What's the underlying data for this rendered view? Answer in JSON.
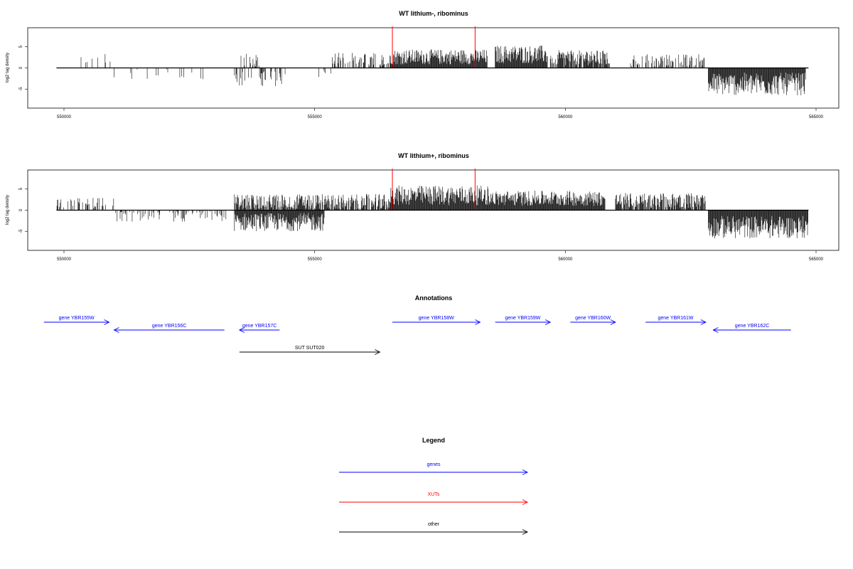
{
  "chart_data": [
    {
      "type": "bar",
      "title": "WT lithium-, ribominus",
      "ylabel": "log2 tag density",
      "xlim": [
        549700,
        565200
      ],
      "ylim": [
        -9.5,
        9.5
      ],
      "xticks": [
        550000,
        555000,
        560000,
        565000
      ],
      "xtick_labels": [
        "550000",
        "555000",
        "560000",
        "565000"
      ],
      "yticks": [
        5,
        0,
        -5
      ],
      "ytick_labels": [
        "5",
        "0",
        "-5"
      ],
      "baseline": {
        "x": [
          549850,
          564850
        ],
        "y": 0
      },
      "markers": [
        {
          "x": 556550,
          "color": "#ff0000"
        },
        {
          "x": 558200,
          "color": "#ff0000"
        }
      ],
      "segments": [
        {
          "start": 549850,
          "end": 551000,
          "mean": 2.0,
          "spread": 0.8,
          "density": 0.1
        },
        {
          "start": 551000,
          "end": 552800,
          "mean": -1.5,
          "spread": 0.8,
          "density": 0.1
        },
        {
          "start": 553450,
          "end": 553900,
          "mean": 1.8,
          "spread": 1.0,
          "density": 0.3
        },
        {
          "start": 553400,
          "end": 554450,
          "mean": -2.5,
          "spread": 1.0,
          "density": 0.3
        },
        {
          "start": 555000,
          "end": 555400,
          "mean": -1.5,
          "spread": 1.0,
          "density": 0.15
        },
        {
          "start": 555350,
          "end": 556500,
          "mean": 1.8,
          "spread": 1.0,
          "density": 0.5
        },
        {
          "start": 556500,
          "end": 558450,
          "mean": 2.6,
          "spread": 1.0,
          "density": 1.0
        },
        {
          "start": 558600,
          "end": 559650,
          "mean": 3.2,
          "spread": 1.2,
          "density": 1.0
        },
        {
          "start": 559700,
          "end": 560900,
          "mean": 2.4,
          "spread": 1.0,
          "density": 0.8
        },
        {
          "start": 561300,
          "end": 562800,
          "mean": 1.8,
          "spread": 0.8,
          "density": 0.4
        },
        {
          "start": 562850,
          "end": 564800,
          "mean": -3.8,
          "spread": 1.5,
          "density": 1.0
        }
      ]
    },
    {
      "type": "bar",
      "title": "WT lithium+, ribominus",
      "ylabel": "log2 tag density",
      "xlim": [
        549700,
        565200
      ],
      "ylim": [
        -9.5,
        9.5
      ],
      "xticks": [
        550000,
        555000,
        560000,
        565000
      ],
      "xtick_labels": [
        "550000",
        "555000",
        "560000",
        "565000"
      ],
      "yticks": [
        5,
        0,
        -5
      ],
      "ytick_labels": [
        "5",
        "0",
        "-5"
      ],
      "baseline": {
        "x": [
          549850,
          564850
        ],
        "y": 0
      },
      "markers": [
        {
          "x": 556550,
          "color": "#ff0000"
        },
        {
          "x": 558200,
          "color": "#ff0000"
        }
      ],
      "segments": [
        {
          "start": 549850,
          "end": 551000,
          "mean": 1.5,
          "spread": 0.8,
          "density": 0.3
        },
        {
          "start": 551000,
          "end": 553300,
          "mean": -1.5,
          "spread": 0.8,
          "density": 0.3
        },
        {
          "start": 553400,
          "end": 555200,
          "mean": -2.8,
          "spread": 1.2,
          "density": 1.0
        },
        {
          "start": 553400,
          "end": 556500,
          "mean": 2.0,
          "spread": 1.0,
          "density": 0.8
        },
        {
          "start": 556500,
          "end": 558500,
          "mean": 3.5,
          "spread": 1.3,
          "density": 1.0
        },
        {
          "start": 558500,
          "end": 560800,
          "mean": 2.8,
          "spread": 1.0,
          "density": 1.0
        },
        {
          "start": 561000,
          "end": 562800,
          "mean": 2.3,
          "spread": 1.0,
          "density": 0.8
        },
        {
          "start": 562850,
          "end": 564850,
          "mean": -4.0,
          "spread": 1.5,
          "density": 1.0
        }
      ]
    }
  ],
  "annotations": {
    "title": "Annotations",
    "features": [
      {
        "label": "gene YBR155W",
        "start": 549600,
        "end": 550900,
        "strand": "+",
        "row": 0,
        "color": "#0000ff"
      },
      {
        "label": "gene YBR156C",
        "start": 551000,
        "end": 553200,
        "strand": "-",
        "row": 1,
        "color": "#0000ff"
      },
      {
        "label": "gene YBR157C",
        "start": 553500,
        "end": 554300,
        "strand": "-",
        "row": 1,
        "color": "#0000ff"
      },
      {
        "label": "SUT SUT020",
        "start": 553500,
        "end": 556300,
        "strand": "+",
        "row": 2,
        "color": "#000000"
      },
      {
        "label": "gene YBR158W",
        "start": 556550,
        "end": 558300,
        "strand": "+",
        "row": 0,
        "color": "#0000ff"
      },
      {
        "label": "gene YBR159W",
        "start": 558600,
        "end": 559700,
        "strand": "+",
        "row": 0,
        "color": "#0000ff"
      },
      {
        "label": "gene YBR160W",
        "start": 560100,
        "end": 561000,
        "strand": "+",
        "row": 0,
        "color": "#0000ff"
      },
      {
        "label": "gene YBR161W",
        "start": 561600,
        "end": 562800,
        "strand": "+",
        "row": 0,
        "color": "#0000ff"
      },
      {
        "label": "gene YBR162C",
        "start": 562950,
        "end": 564500,
        "strand": "-",
        "row": 1,
        "color": "#0000ff"
      }
    ]
  },
  "legend": {
    "title": "Legend",
    "items": [
      {
        "label": "genes",
        "color": "#0000ff"
      },
      {
        "label": "XUTs",
        "color": "#ff0000"
      },
      {
        "label": "other",
        "color": "#000000"
      }
    ]
  }
}
